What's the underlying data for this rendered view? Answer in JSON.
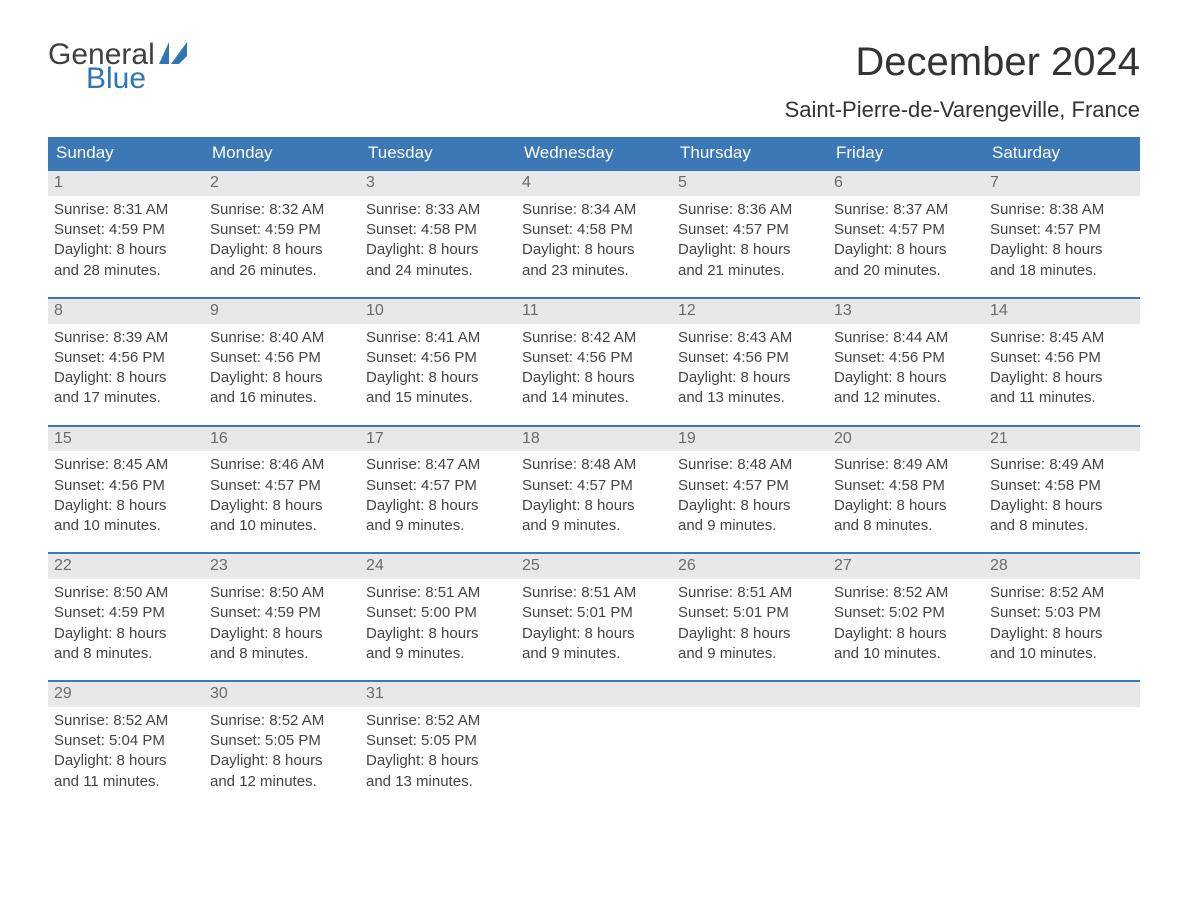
{
  "brand": {
    "word1": "General",
    "word2": "Blue"
  },
  "title": "December 2024",
  "location": "Saint-Pierre-de-Varengeville, France",
  "colors": {
    "header_bg": "#3b78b5",
    "header_text": "#ffffff",
    "daynum_bg": "#e8e8e8",
    "daynum_text": "#6b6b6b",
    "border": "#3b78b5",
    "body_text": "#444444",
    "brand_blue": "#2e75b6",
    "brand_gray": "#404040"
  },
  "weekdays": [
    "Sunday",
    "Monday",
    "Tuesday",
    "Wednesday",
    "Thursday",
    "Friday",
    "Saturday"
  ],
  "weeks": [
    [
      {
        "n": "1",
        "sr": "Sunrise: 8:31 AM",
        "ss": "Sunset: 4:59 PM",
        "d1": "Daylight: 8 hours",
        "d2": "and 28 minutes."
      },
      {
        "n": "2",
        "sr": "Sunrise: 8:32 AM",
        "ss": "Sunset: 4:59 PM",
        "d1": "Daylight: 8 hours",
        "d2": "and 26 minutes."
      },
      {
        "n": "3",
        "sr": "Sunrise: 8:33 AM",
        "ss": "Sunset: 4:58 PM",
        "d1": "Daylight: 8 hours",
        "d2": "and 24 minutes."
      },
      {
        "n": "4",
        "sr": "Sunrise: 8:34 AM",
        "ss": "Sunset: 4:58 PM",
        "d1": "Daylight: 8 hours",
        "d2": "and 23 minutes."
      },
      {
        "n": "5",
        "sr": "Sunrise: 8:36 AM",
        "ss": "Sunset: 4:57 PM",
        "d1": "Daylight: 8 hours",
        "d2": "and 21 minutes."
      },
      {
        "n": "6",
        "sr": "Sunrise: 8:37 AM",
        "ss": "Sunset: 4:57 PM",
        "d1": "Daylight: 8 hours",
        "d2": "and 20 minutes."
      },
      {
        "n": "7",
        "sr": "Sunrise: 8:38 AM",
        "ss": "Sunset: 4:57 PM",
        "d1": "Daylight: 8 hours",
        "d2": "and 18 minutes."
      }
    ],
    [
      {
        "n": "8",
        "sr": "Sunrise: 8:39 AM",
        "ss": "Sunset: 4:56 PM",
        "d1": "Daylight: 8 hours",
        "d2": "and 17 minutes."
      },
      {
        "n": "9",
        "sr": "Sunrise: 8:40 AM",
        "ss": "Sunset: 4:56 PM",
        "d1": "Daylight: 8 hours",
        "d2": "and 16 minutes."
      },
      {
        "n": "10",
        "sr": "Sunrise: 8:41 AM",
        "ss": "Sunset: 4:56 PM",
        "d1": "Daylight: 8 hours",
        "d2": "and 15 minutes."
      },
      {
        "n": "11",
        "sr": "Sunrise: 8:42 AM",
        "ss": "Sunset: 4:56 PM",
        "d1": "Daylight: 8 hours",
        "d2": "and 14 minutes."
      },
      {
        "n": "12",
        "sr": "Sunrise: 8:43 AM",
        "ss": "Sunset: 4:56 PM",
        "d1": "Daylight: 8 hours",
        "d2": "and 13 minutes."
      },
      {
        "n": "13",
        "sr": "Sunrise: 8:44 AM",
        "ss": "Sunset: 4:56 PM",
        "d1": "Daylight: 8 hours",
        "d2": "and 12 minutes."
      },
      {
        "n": "14",
        "sr": "Sunrise: 8:45 AM",
        "ss": "Sunset: 4:56 PM",
        "d1": "Daylight: 8 hours",
        "d2": "and 11 minutes."
      }
    ],
    [
      {
        "n": "15",
        "sr": "Sunrise: 8:45 AM",
        "ss": "Sunset: 4:56 PM",
        "d1": "Daylight: 8 hours",
        "d2": "and 10 minutes."
      },
      {
        "n": "16",
        "sr": "Sunrise: 8:46 AM",
        "ss": "Sunset: 4:57 PM",
        "d1": "Daylight: 8 hours",
        "d2": "and 10 minutes."
      },
      {
        "n": "17",
        "sr": "Sunrise: 8:47 AM",
        "ss": "Sunset: 4:57 PM",
        "d1": "Daylight: 8 hours",
        "d2": "and 9 minutes."
      },
      {
        "n": "18",
        "sr": "Sunrise: 8:48 AM",
        "ss": "Sunset: 4:57 PM",
        "d1": "Daylight: 8 hours",
        "d2": "and 9 minutes."
      },
      {
        "n": "19",
        "sr": "Sunrise: 8:48 AM",
        "ss": "Sunset: 4:57 PM",
        "d1": "Daylight: 8 hours",
        "d2": "and 9 minutes."
      },
      {
        "n": "20",
        "sr": "Sunrise: 8:49 AM",
        "ss": "Sunset: 4:58 PM",
        "d1": "Daylight: 8 hours",
        "d2": "and 8 minutes."
      },
      {
        "n": "21",
        "sr": "Sunrise: 8:49 AM",
        "ss": "Sunset: 4:58 PM",
        "d1": "Daylight: 8 hours",
        "d2": "and 8 minutes."
      }
    ],
    [
      {
        "n": "22",
        "sr": "Sunrise: 8:50 AM",
        "ss": "Sunset: 4:59 PM",
        "d1": "Daylight: 8 hours",
        "d2": "and 8 minutes."
      },
      {
        "n": "23",
        "sr": "Sunrise: 8:50 AM",
        "ss": "Sunset: 4:59 PM",
        "d1": "Daylight: 8 hours",
        "d2": "and 8 minutes."
      },
      {
        "n": "24",
        "sr": "Sunrise: 8:51 AM",
        "ss": "Sunset: 5:00 PM",
        "d1": "Daylight: 8 hours",
        "d2": "and 9 minutes."
      },
      {
        "n": "25",
        "sr": "Sunrise: 8:51 AM",
        "ss": "Sunset: 5:01 PM",
        "d1": "Daylight: 8 hours",
        "d2": "and 9 minutes."
      },
      {
        "n": "26",
        "sr": "Sunrise: 8:51 AM",
        "ss": "Sunset: 5:01 PM",
        "d1": "Daylight: 8 hours",
        "d2": "and 9 minutes."
      },
      {
        "n": "27",
        "sr": "Sunrise: 8:52 AM",
        "ss": "Sunset: 5:02 PM",
        "d1": "Daylight: 8 hours",
        "d2": "and 10 minutes."
      },
      {
        "n": "28",
        "sr": "Sunrise: 8:52 AM",
        "ss": "Sunset: 5:03 PM",
        "d1": "Daylight: 8 hours",
        "d2": "and 10 minutes."
      }
    ],
    [
      {
        "n": "29",
        "sr": "Sunrise: 8:52 AM",
        "ss": "Sunset: 5:04 PM",
        "d1": "Daylight: 8 hours",
        "d2": "and 11 minutes."
      },
      {
        "n": "30",
        "sr": "Sunrise: 8:52 AM",
        "ss": "Sunset: 5:05 PM",
        "d1": "Daylight: 8 hours",
        "d2": "and 12 minutes."
      },
      {
        "n": "31",
        "sr": "Sunrise: 8:52 AM",
        "ss": "Sunset: 5:05 PM",
        "d1": "Daylight: 8 hours",
        "d2": "and 13 minutes."
      },
      {
        "n": "",
        "sr": "",
        "ss": "",
        "d1": "",
        "d2": ""
      },
      {
        "n": "",
        "sr": "",
        "ss": "",
        "d1": "",
        "d2": ""
      },
      {
        "n": "",
        "sr": "",
        "ss": "",
        "d1": "",
        "d2": ""
      },
      {
        "n": "",
        "sr": "",
        "ss": "",
        "d1": "",
        "d2": ""
      }
    ]
  ]
}
